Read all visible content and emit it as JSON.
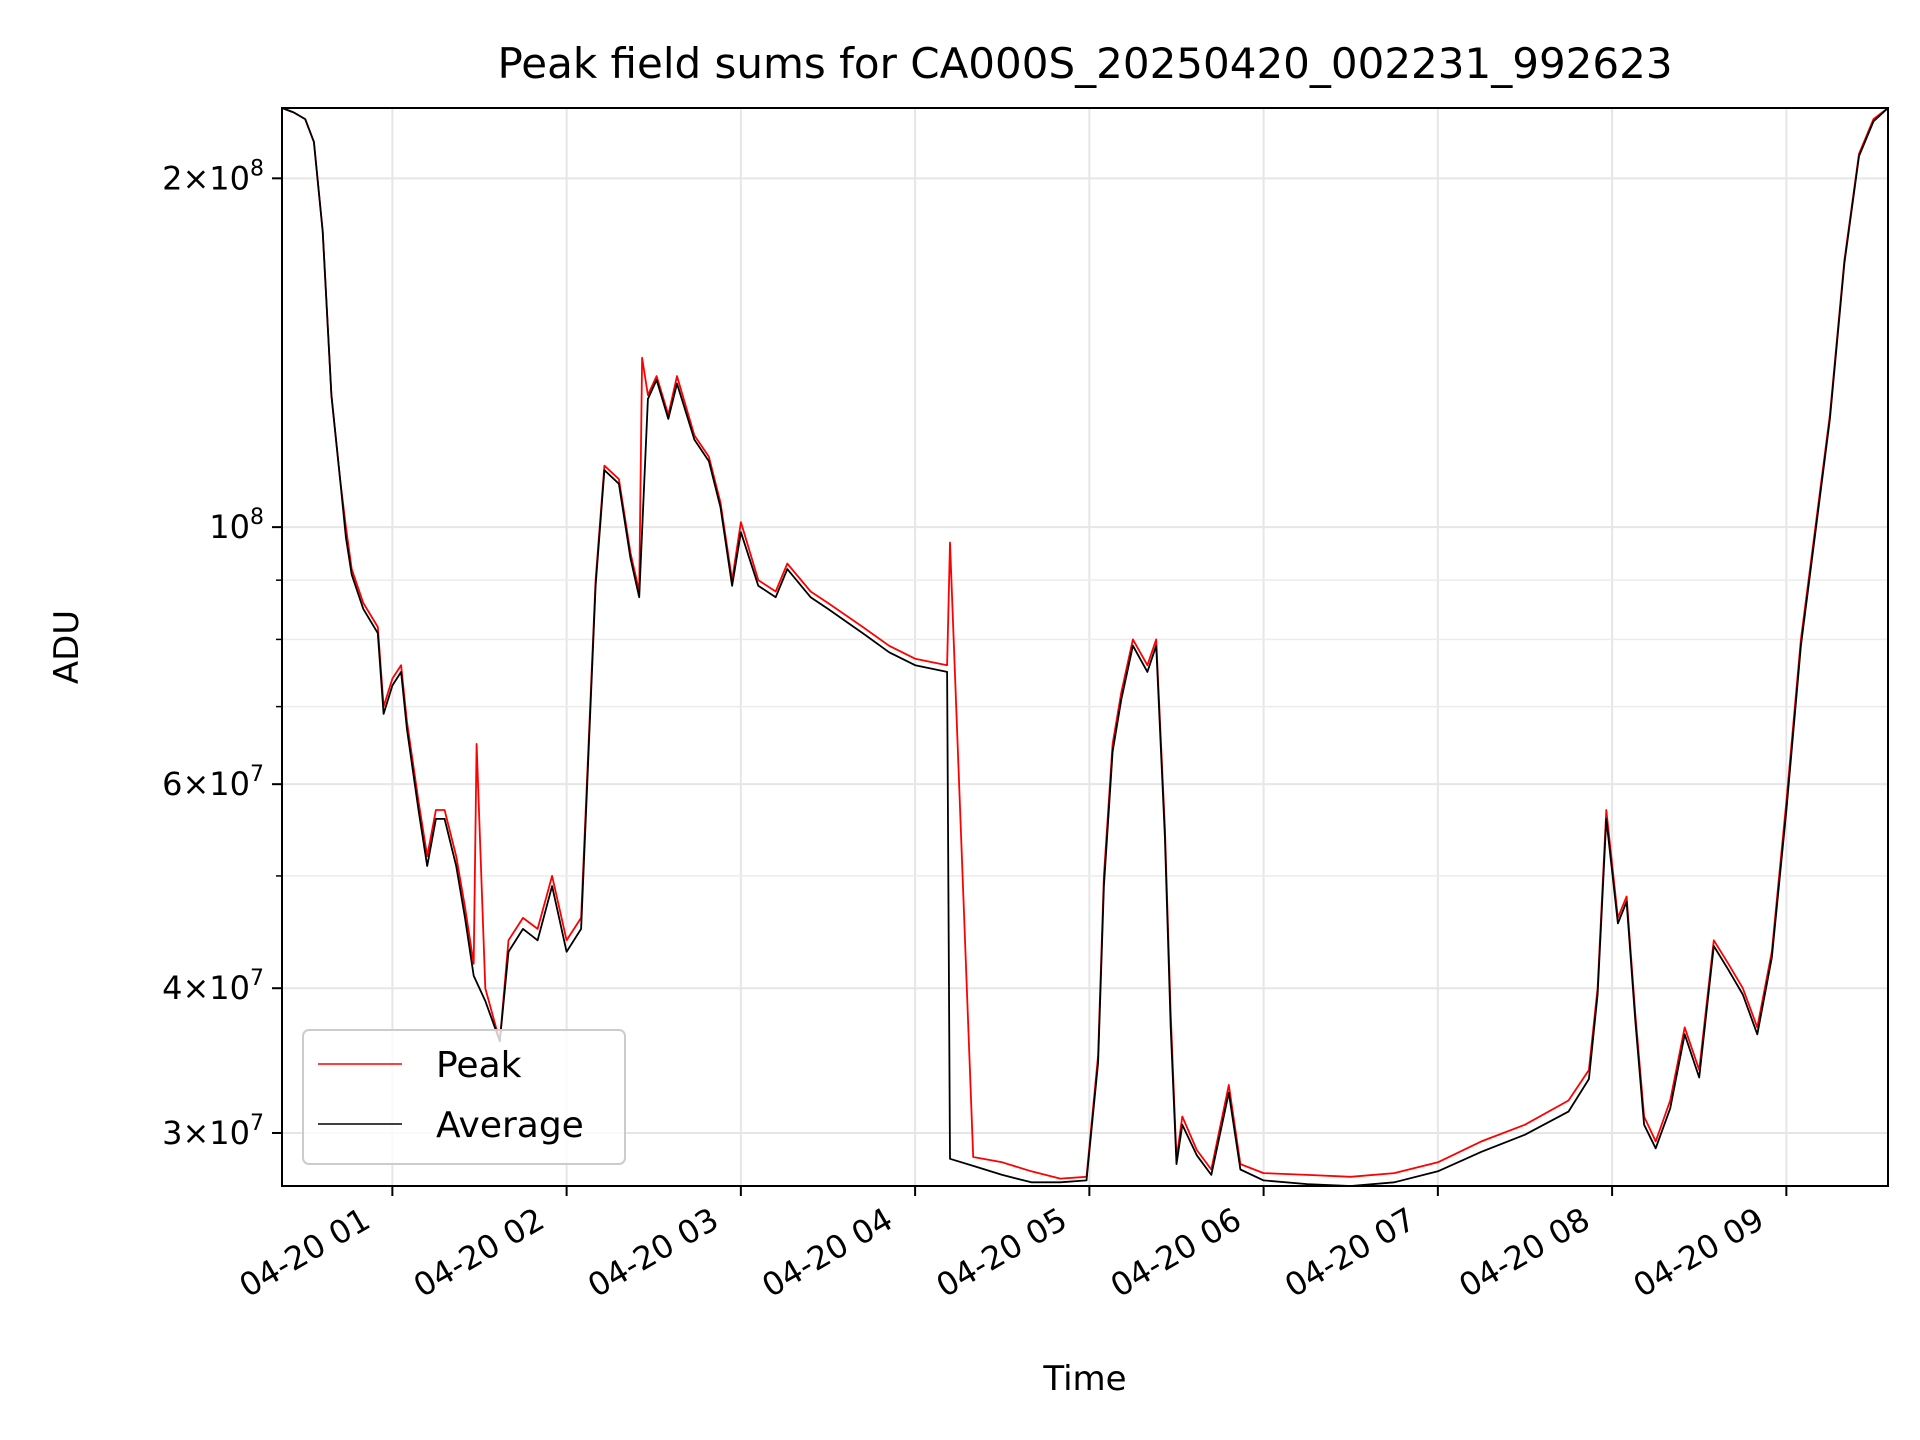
{
  "chart_data": {
    "type": "line",
    "title": "Peak field sums for CA000S_20250420_002231_992623",
    "xlabel": "Time",
    "ylabel": "ADU",
    "yscale": "log",
    "xlim": [
      "2025-04-20 00:22",
      "2025-04-20 09:35"
    ],
    "ylim": [
      27000000,
      230000000
    ],
    "grid": true,
    "legend_position": "lower-left",
    "x_tick_labels": [
      "04-20 01",
      "04-20 02",
      "04-20 03",
      "04-20 04",
      "04-20 05",
      "04-20 06",
      "04-20 07",
      "04-20 08",
      "04-20 09"
    ],
    "x_tick_values": [
      "2025-04-20 01:00",
      "2025-04-20 02:00",
      "2025-04-20 03:00",
      "2025-04-20 04:00",
      "2025-04-20 05:00",
      "2025-04-20 06:00",
      "2025-04-20 07:00",
      "2025-04-20 08:00",
      "2025-04-20 09:00"
    ],
    "y_major_ticks": [
      {
        "value": 30000000,
        "mantissa": "3",
        "exponent": "7"
      },
      {
        "value": 40000000,
        "mantissa": "4",
        "exponent": "7"
      },
      {
        "value": 60000000,
        "mantissa": "6",
        "exponent": "7"
      },
      {
        "value": 100000000,
        "mantissa": "",
        "exponent": "8"
      },
      {
        "value": 200000000,
        "mantissa": "2",
        "exponent": "8"
      }
    ],
    "y_minor_ticks": [
      50000000,
      70000000,
      80000000,
      90000000
    ],
    "series": [
      {
        "name": "Peak",
        "color": "#ff0000",
        "x": [
          "2025-04-20 00:22",
          "2025-04-20 00:26",
          "2025-04-20 00:30",
          "2025-04-20 00:33",
          "2025-04-20 00:36",
          "2025-04-20 00:39",
          "2025-04-20 00:42",
          "2025-04-20 00:44",
          "2025-04-20 00:46",
          "2025-04-20 00:50",
          "2025-04-20 00:55",
          "2025-04-20 00:57",
          "2025-04-20 01:00",
          "2025-04-20 01:03",
          "2025-04-20 01:05",
          "2025-04-20 01:09",
          "2025-04-20 01:12",
          "2025-04-20 01:15",
          "2025-04-20 01:18",
          "2025-04-20 01:22",
          "2025-04-20 01:25",
          "2025-04-20 01:28",
          "2025-04-20 01:29",
          "2025-04-20 01:32",
          "2025-04-20 01:37",
          "2025-04-20 01:40",
          "2025-04-20 01:45",
          "2025-04-20 01:50",
          "2025-04-20 01:55",
          "2025-04-20 02:00",
          "2025-04-20 02:05",
          "2025-04-20 02:10",
          "2025-04-20 02:13",
          "2025-04-20 02:18",
          "2025-04-20 02:22",
          "2025-04-20 02:25",
          "2025-04-20 02:26",
          "2025-04-20 02:28",
          "2025-04-20 02:31",
          "2025-04-20 02:35",
          "2025-04-20 02:38",
          "2025-04-20 02:44",
          "2025-04-20 02:49",
          "2025-04-20 02:53",
          "2025-04-20 02:57",
          "2025-04-20 03:00",
          "2025-04-20 03:06",
          "2025-04-20 03:12",
          "2025-04-20 03:16",
          "2025-04-20 03:24",
          "2025-04-20 03:30",
          "2025-04-20 03:42",
          "2025-04-20 03:51",
          "2025-04-20 04:00",
          "2025-04-20 04:11",
          "2025-04-20 04:12",
          "2025-04-20 04:20",
          "2025-04-20 04:30",
          "2025-04-20 04:40",
          "2025-04-20 04:50",
          "2025-04-20 04:59",
          "2025-04-20 05:03",
          "2025-04-20 05:05",
          "2025-04-20 05:08",
          "2025-04-20 05:11",
          "2025-04-20 05:15",
          "2025-04-20 05:20",
          "2025-04-20 05:23",
          "2025-04-20 05:26",
          "2025-04-20 05:28",
          "2025-04-20 05:30",
          "2025-04-20 05:32",
          "2025-04-20 05:37",
          "2025-04-20 05:42",
          "2025-04-20 05:48",
          "2025-04-20 05:52",
          "2025-04-20 06:00",
          "2025-04-20 06:15",
          "2025-04-20 06:30",
          "2025-04-20 06:45",
          "2025-04-20 07:00",
          "2025-04-20 07:15",
          "2025-04-20 07:30",
          "2025-04-20 07:45",
          "2025-04-20 07:52",
          "2025-04-20 07:55",
          "2025-04-20 07:58",
          "2025-04-20 08:02",
          "2025-04-20 08:05",
          "2025-04-20 08:08",
          "2025-04-20 08:11",
          "2025-04-20 08:15",
          "2025-04-20 08:20",
          "2025-04-20 08:25",
          "2025-04-20 08:30",
          "2025-04-20 08:35",
          "2025-04-20 08:40",
          "2025-04-20 08:45",
          "2025-04-20 08:50",
          "2025-04-20 08:55",
          "2025-04-20 09:00",
          "2025-04-20 09:05",
          "2025-04-20 09:10",
          "2025-04-20 09:15",
          "2025-04-20 09:20",
          "2025-04-20 09:25",
          "2025-04-20 09:30",
          "2025-04-20 09:35"
        ],
        "y": [
          230000000,
          228000000,
          225000000,
          215000000,
          180000000,
          130000000,
          110000000,
          100000000,
          92000000,
          86000000,
          82000000,
          70000000,
          74000000,
          76000000,
          68000000,
          58000000,
          52000000,
          57000000,
          57000000,
          52000000,
          47000000,
          42000000,
          65000000,
          40000000,
          36000000,
          44000000,
          46000000,
          45000000,
          50000000,
          44000000,
          46000000,
          90000000,
          113000000,
          110000000,
          95000000,
          88000000,
          140000000,
          130000000,
          135000000,
          125000000,
          135000000,
          120000000,
          115000000,
          105000000,
          90000000,
          101000000,
          90000000,
          88000000,
          93000000,
          88000000,
          86000000,
          82000000,
          79000000,
          77000000,
          76000000,
          97000000,
          28600000,
          28300000,
          27800000,
          27400000,
          27500000,
          35000000,
          50000000,
          65000000,
          72000000,
          80000000,
          76000000,
          80000000,
          55000000,
          38000000,
          28500000,
          31000000,
          29000000,
          27900000,
          33000000,
          28200000,
          27700000,
          27600000,
          27500000,
          27700000,
          28300000,
          29500000,
          30500000,
          32000000,
          34000000,
          40000000,
          57000000,
          46000000,
          48000000,
          38000000,
          31000000,
          29500000,
          32000000,
          37000000,
          34000000,
          44000000,
          42000000,
          40000000,
          37000000,
          43000000,
          58000000,
          80000000,
          100000000,
          125000000,
          170000000,
          210000000,
          225000000,
          230000000
        ]
      },
      {
        "name": "Average",
        "color": "#000000",
        "x": [
          "2025-04-20 00:22",
          "2025-04-20 00:26",
          "2025-04-20 00:30",
          "2025-04-20 00:33",
          "2025-04-20 00:36",
          "2025-04-20 00:39",
          "2025-04-20 00:42",
          "2025-04-20 00:44",
          "2025-04-20 00:46",
          "2025-04-20 00:50",
          "2025-04-20 00:55",
          "2025-04-20 00:57",
          "2025-04-20 01:00",
          "2025-04-20 01:03",
          "2025-04-20 01:05",
          "2025-04-20 01:09",
          "2025-04-20 01:12",
          "2025-04-20 01:15",
          "2025-04-20 01:18",
          "2025-04-20 01:22",
          "2025-04-20 01:25",
          "2025-04-20 01:28",
          "2025-04-20 01:32",
          "2025-04-20 01:37",
          "2025-04-20 01:40",
          "2025-04-20 01:45",
          "2025-04-20 01:50",
          "2025-04-20 01:55",
          "2025-04-20 02:00",
          "2025-04-20 02:05",
          "2025-04-20 02:10",
          "2025-04-20 02:13",
          "2025-04-20 02:18",
          "2025-04-20 02:22",
          "2025-04-20 02:25",
          "2025-04-20 02:28",
          "2025-04-20 02:31",
          "2025-04-20 02:35",
          "2025-04-20 02:38",
          "2025-04-20 02:44",
          "2025-04-20 02:49",
          "2025-04-20 02:53",
          "2025-04-20 02:57",
          "2025-04-20 03:00",
          "2025-04-20 03:06",
          "2025-04-20 03:12",
          "2025-04-20 03:16",
          "2025-04-20 03:24",
          "2025-04-20 03:30",
          "2025-04-20 03:42",
          "2025-04-20 03:51",
          "2025-04-20 04:00",
          "2025-04-20 04:11",
          "2025-04-20 04:12",
          "2025-04-20 04:20",
          "2025-04-20 04:30",
          "2025-04-20 04:40",
          "2025-04-20 04:50",
          "2025-04-20 04:59",
          "2025-04-20 05:03",
          "2025-04-20 05:05",
          "2025-04-20 05:08",
          "2025-04-20 05:11",
          "2025-04-20 05:15",
          "2025-04-20 05:20",
          "2025-04-20 05:23",
          "2025-04-20 05:26",
          "2025-04-20 05:28",
          "2025-04-20 05:30",
          "2025-04-20 05:32",
          "2025-04-20 05:37",
          "2025-04-20 05:42",
          "2025-04-20 05:48",
          "2025-04-20 05:52",
          "2025-04-20 06:00",
          "2025-04-20 06:15",
          "2025-04-20 06:30",
          "2025-04-20 06:45",
          "2025-04-20 07:00",
          "2025-04-20 07:15",
          "2025-04-20 07:30",
          "2025-04-20 07:45",
          "2025-04-20 07:52",
          "2025-04-20 07:55",
          "2025-04-20 07:58",
          "2025-04-20 08:02",
          "2025-04-20 08:05",
          "2025-04-20 08:08",
          "2025-04-20 08:11",
          "2025-04-20 08:15",
          "2025-04-20 08:20",
          "2025-04-20 08:25",
          "2025-04-20 08:30",
          "2025-04-20 08:35",
          "2025-04-20 08:40",
          "2025-04-20 08:45",
          "2025-04-20 08:50",
          "2025-04-20 08:55",
          "2025-04-20 09:00",
          "2025-04-20 09:05",
          "2025-04-20 09:10",
          "2025-04-20 09:15",
          "2025-04-20 09:20",
          "2025-04-20 09:25",
          "2025-04-20 09:30",
          "2025-04-20 09:35"
        ],
        "y": [
          230000000,
          228000000,
          225000000,
          215000000,
          180000000,
          130000000,
          110000000,
          98000000,
          91000000,
          85000000,
          81000000,
          69000000,
          73000000,
          75000000,
          67000000,
          57000000,
          51000000,
          56000000,
          56000000,
          51000000,
          46000000,
          41000000,
          39000000,
          36000000,
          43000000,
          45000000,
          44000000,
          49000000,
          43000000,
          45000000,
          89000000,
          112000000,
          109000000,
          94000000,
          87000000,
          129000000,
          134000000,
          124000000,
          133000000,
          119000000,
          114000000,
          104000000,
          89000000,
          99000000,
          89000000,
          87000000,
          92000000,
          87000000,
          85000000,
          81000000,
          78000000,
          76000000,
          75000000,
          28500000,
          28100000,
          27600000,
          27200000,
          27200000,
          27300000,
          34500000,
          49000000,
          64000000,
          71000000,
          79000000,
          75000000,
          79000000,
          54000000,
          37000000,
          28200000,
          30500000,
          28700000,
          27600000,
          32500000,
          27900000,
          27300000,
          27100000,
          27000000,
          27200000,
          27800000,
          28900000,
          29900000,
          31300000,
          33400000,
          39500000,
          56000000,
          45500000,
          47500000,
          37500000,
          30500000,
          29100000,
          31500000,
          36500000,
          33500000,
          43500000,
          41500000,
          39500000,
          36500000,
          42500000,
          57000000,
          79000000,
          99000000,
          124000000,
          169000000,
          209000000,
          224000000,
          230000000
        ]
      }
    ]
  }
}
